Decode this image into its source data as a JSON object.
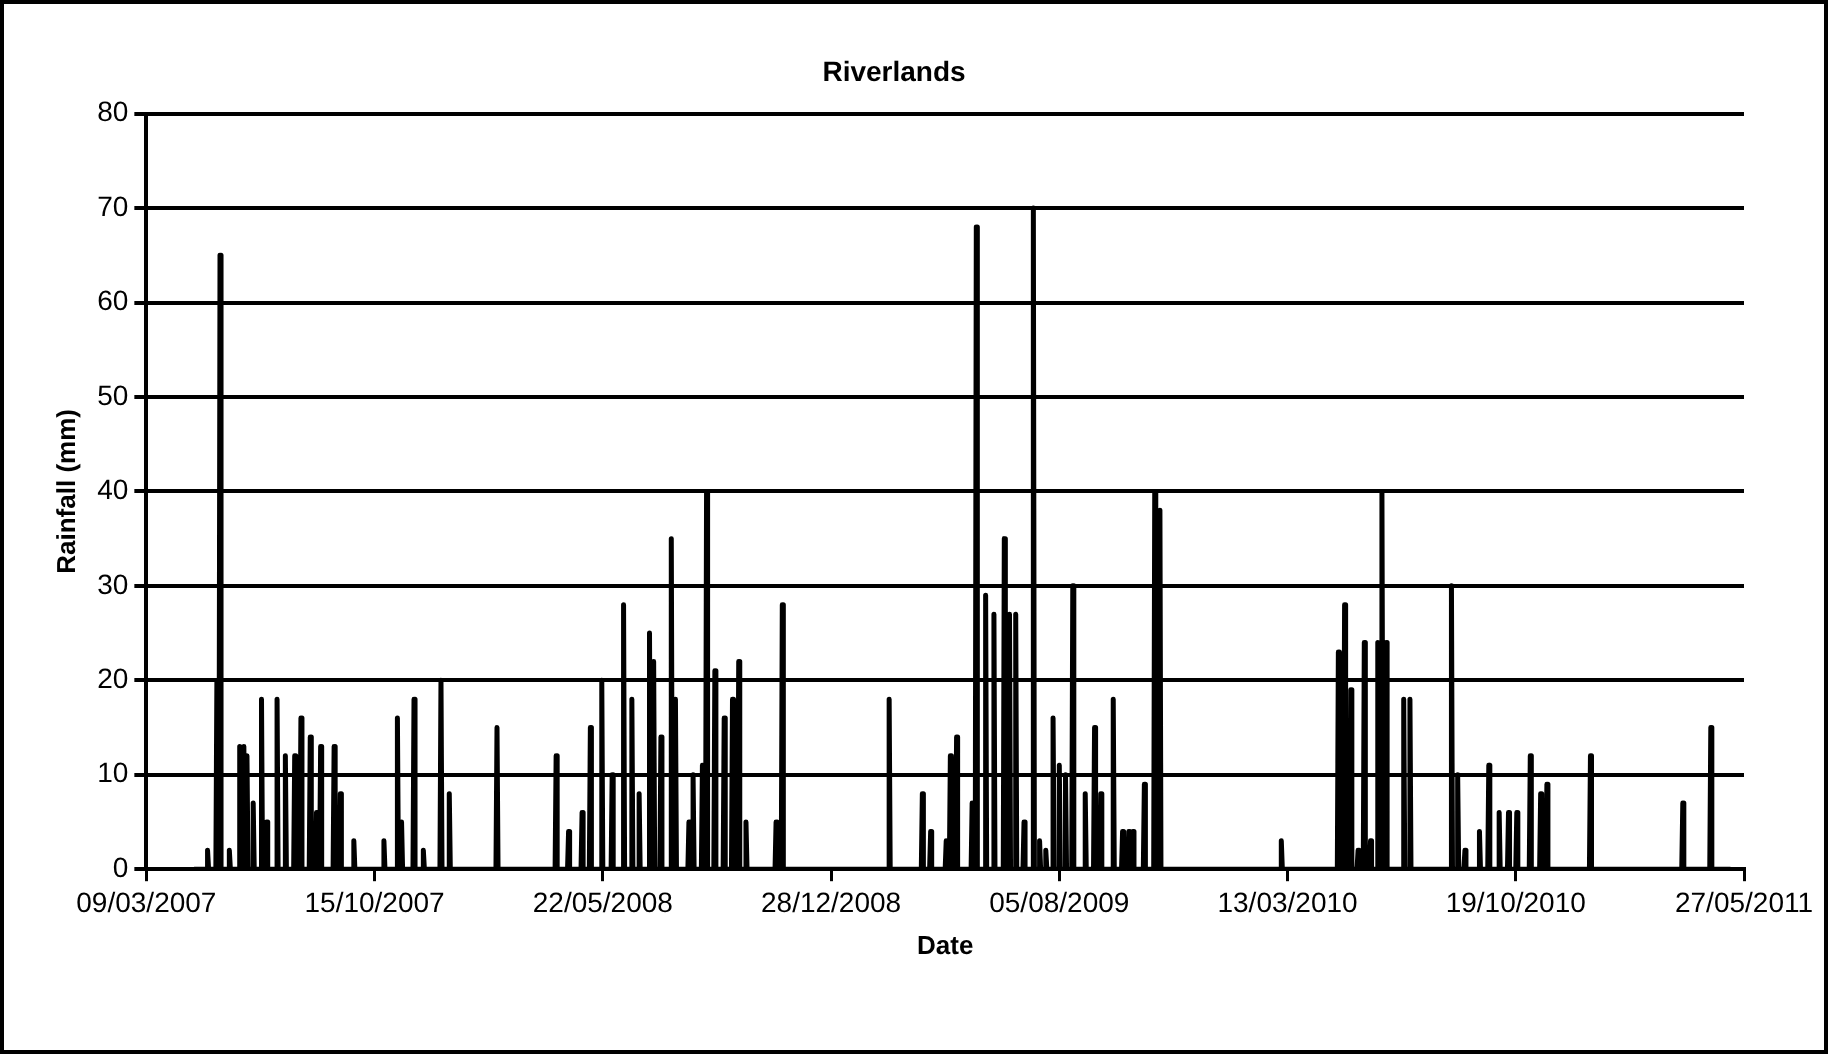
{
  "chart_data": {
    "type": "line",
    "title": "Riverlands",
    "xlabel": "Date",
    "ylabel": "Rainfall (mm)",
    "xlim": [
      "2007-03-09",
      "2011-05-27"
    ],
    "xticks": [
      {
        "value": "2007-03-09",
        "label": "09/03/2007"
      },
      {
        "value": "2007-10-15",
        "label": "15/10/2007"
      },
      {
        "value": "2008-05-22",
        "label": "22/05/2008"
      },
      {
        "value": "2008-12-28",
        "label": "28/12/2008"
      },
      {
        "value": "2009-08-05",
        "label": "05/08/2009"
      },
      {
        "value": "2010-03-13",
        "label": "13/03/2010"
      },
      {
        "value": "2010-10-19",
        "label": "19/10/2010"
      },
      {
        "value": "2011-05-27",
        "label": "27/05/2011"
      }
    ],
    "ylim": [
      0,
      80
    ],
    "yticks": [
      0,
      10,
      20,
      30,
      40,
      50,
      60,
      70,
      80
    ],
    "grid": "y",
    "legend": false,
    "marker": "none",
    "line_style": "solid",
    "series": [
      {
        "color": "#000000",
        "x": [
          "2007-04-24",
          "2007-05-06",
          "2007-05-07",
          "2007-05-08",
          "2007-05-15",
          "2007-05-16",
          "2007-05-17",
          "2007-05-18",
          "2007-05-19",
          "2007-05-20",
          "2007-05-27",
          "2007-05-28",
          "2007-05-29",
          "2007-06-06",
          "2007-06-07",
          "2007-06-08",
          "2007-06-10",
          "2007-06-11",
          "2007-06-12",
          "2007-06-13",
          "2007-06-14",
          "2007-06-15",
          "2007-06-19",
          "2007-06-20",
          "2007-06-21",
          "2007-06-27",
          "2007-06-28",
          "2007-06-29",
          "2007-07-02",
          "2007-07-03",
          "2007-07-04",
          "2007-07-12",
          "2007-07-13",
          "2007-07-14",
          "2007-07-20",
          "2007-07-21",
          "2007-07-22",
          "2007-07-29",
          "2007-07-30",
          "2007-07-31",
          "2007-08-04",
          "2007-08-05",
          "2007-08-06",
          "2007-08-13",
          "2007-08-14",
          "2007-08-15",
          "2007-08-19",
          "2007-08-20",
          "2007-08-21",
          "2007-08-23",
          "2007-08-24",
          "2007-08-25",
          "2007-09-05",
          "2007-09-06",
          "2007-09-07",
          "2007-09-11",
          "2007-09-12",
          "2007-09-13",
          "2007-09-24",
          "2007-09-25",
          "2007-09-26",
          "2007-10-23",
          "2007-10-24",
          "2007-10-25",
          "2007-11-05",
          "2007-11-06",
          "2007-11-07",
          "2007-11-09",
          "2007-11-10",
          "2007-11-11",
          "2007-11-21",
          "2007-11-22",
          "2007-11-23",
          "2007-11-30",
          "2007-12-01",
          "2007-12-02",
          "2007-12-17",
          "2007-12-18",
          "2007-12-19",
          "2007-12-25",
          "2007-12-26",
          "2007-12-27",
          "2008-02-09",
          "2008-02-10",
          "2008-02-11",
          "2008-04-06",
          "2008-04-07",
          "2008-04-08",
          "2008-04-18",
          "2008-04-19",
          "2008-04-20",
          "2008-05-01",
          "2008-05-02",
          "2008-05-03",
          "2008-05-09",
          "2008-05-10",
          "2008-05-11",
          "2008-05-20",
          "2008-05-21",
          "2008-05-22",
          "2008-05-30",
          "2008-05-31",
          "2008-06-01",
          "2008-06-10",
          "2008-06-11",
          "2008-06-12",
          "2008-06-18",
          "2008-06-19",
          "2008-06-20",
          "2008-06-25",
          "2008-06-26",
          "2008-06-27",
          "2008-07-05",
          "2008-07-06",
          "2008-07-07",
          "2008-07-09",
          "2008-07-10",
          "2008-07-11",
          "2008-07-16",
          "2008-07-17",
          "2008-07-18",
          "2008-07-26",
          "2008-07-27",
          "2008-07-28",
          "2008-07-30",
          "2008-07-31",
          "2008-08-01",
          "2008-08-12",
          "2008-08-13",
          "2008-08-14",
          "2008-08-16",
          "2008-08-17",
          "2008-08-18",
          "2008-08-25",
          "2008-08-26",
          "2008-08-27",
          "2008-08-29",
          "2008-08-30",
          "2008-08-31",
          "2008-09-06",
          "2008-09-07",
          "2008-09-08",
          "2008-09-15",
          "2008-09-16",
          "2008-09-17",
          "2008-09-23",
          "2008-09-24",
          "2008-09-25",
          "2008-09-29",
          "2008-09-30",
          "2008-10-01",
          "2008-10-06",
          "2008-10-07",
          "2008-10-08",
          "2008-11-04",
          "2008-11-05",
          "2008-11-06",
          "2008-11-10",
          "2008-11-11",
          "2008-11-12",
          "2009-02-21",
          "2009-02-22",
          "2009-02-23",
          "2009-03-25",
          "2009-03-26",
          "2009-03-27",
          "2009-04-02",
          "2009-04-03",
          "2009-04-04",
          "2009-04-17",
          "2009-04-18",
          "2009-04-19",
          "2009-04-21",
          "2009-04-22",
          "2009-04-23",
          "2009-04-27",
          "2009-04-28",
          "2009-04-29",
          "2009-05-12",
          "2009-05-13",
          "2009-05-14",
          "2009-05-16",
          "2009-05-17",
          "2009-05-18",
          "2009-05-25",
          "2009-05-26",
          "2009-05-27",
          "2009-06-02",
          "2009-06-03",
          "2009-06-04",
          "2009-06-12",
          "2009-06-13",
          "2009-06-14",
          "2009-06-17",
          "2009-06-18",
          "2009-06-19",
          "2009-06-23",
          "2009-06-24",
          "2009-06-25",
          "2009-07-01",
          "2009-07-02",
          "2009-07-03",
          "2009-07-10",
          "2009-07-11",
          "2009-07-12",
          "2009-07-16",
          "2009-07-17",
          "2009-07-18",
          "2009-07-22",
          "2009-07-23",
          "2009-07-24",
          "2009-07-29",
          "2009-07-30",
          "2009-07-31",
          "2009-08-04",
          "2009-08-05",
          "2009-08-06",
          "2009-08-10",
          "2009-08-11",
          "2009-08-12",
          "2009-08-17",
          "2009-08-18",
          "2009-08-19",
          "2009-08-29",
          "2009-08-30",
          "2009-08-31",
          "2009-09-07",
          "2009-09-08",
          "2009-09-09",
          "2009-09-13",
          "2009-09-14",
          "2009-09-15",
          "2009-09-25",
          "2009-09-26",
          "2009-09-27",
          "2009-10-04",
          "2009-10-05",
          "2009-10-06",
          "2009-10-10",
          "2009-10-11",
          "2009-10-12",
          "2009-10-14",
          "2009-10-15",
          "2009-10-16",
          "2009-10-25",
          "2009-10-26",
          "2009-10-27",
          "2009-11-04",
          "2009-11-05",
          "2009-11-06",
          "2009-11-09",
          "2009-11-10",
          "2009-11-11",
          "2010-03-06",
          "2010-03-07",
          "2010-03-08",
          "2010-04-30",
          "2010-05-01",
          "2010-05-02",
          "2010-05-06",
          "2010-05-07",
          "2010-05-08",
          "2010-05-12",
          "2010-05-13",
          "2010-05-14",
          "2010-05-19",
          "2010-05-20",
          "2010-05-21",
          "2010-05-25",
          "2010-05-26",
          "2010-05-27",
          "2010-05-31",
          "2010-06-01",
          "2010-06-02",
          "2010-06-07",
          "2010-06-08",
          "2010-06-09",
          "2010-06-11",
          "2010-06-12",
          "2010-06-13",
          "2010-06-15",
          "2010-06-16",
          "2010-06-17",
          "2010-07-02",
          "2010-07-03",
          "2010-07-04",
          "2010-07-08",
          "2010-07-09",
          "2010-07-10",
          "2010-08-17",
          "2010-08-18",
          "2010-08-19",
          "2010-08-23",
          "2010-08-24",
          "2010-08-25",
          "2010-08-30",
          "2010-08-31",
          "2010-09-01",
          "2010-09-13",
          "2010-09-14",
          "2010-09-15",
          "2010-09-22",
          "2010-09-23",
          "2010-09-24",
          "2010-10-02",
          "2010-10-03",
          "2010-10-04",
          "2010-10-11",
          "2010-10-12",
          "2010-10-13",
          "2010-10-19",
          "2010-10-20",
          "2010-10-21",
          "2010-11-01",
          "2010-11-02",
          "2010-11-03",
          "2010-11-11",
          "2010-11-12",
          "2010-11-13",
          "2010-11-17",
          "2010-11-18",
          "2010-11-19",
          "2010-12-29",
          "2010-12-30",
          "2010-12-31",
          "2011-03-28",
          "2011-03-29",
          "2011-03-30",
          "2011-04-24",
          "2011-04-25",
          "2011-04-26",
          "2011-05-14"
        ],
        "values": [
          0,
          0,
          2,
          0,
          0,
          20,
          0,
          0,
          65,
          0,
          0,
          2,
          0,
          0,
          13,
          0,
          0,
          13,
          0,
          0,
          12,
          0,
          0,
          7,
          0,
          0,
          18,
          0,
          0,
          5,
          0,
          0,
          18,
          0,
          0,
          12,
          0,
          0,
          12,
          0,
          0,
          16,
          0,
          0,
          14,
          0,
          0,
          6,
          0,
          0,
          13,
          0,
          0,
          13,
          0,
          0,
          8,
          0,
          0,
          3,
          0,
          0,
          3,
          0,
          0,
          16,
          0,
          0,
          5,
          0,
          0,
          18,
          0,
          0,
          2,
          0,
          0,
          20,
          0,
          0,
          8,
          0,
          0,
          15,
          0,
          0,
          12,
          0,
          0,
          4,
          0,
          0,
          6,
          0,
          0,
          15,
          0,
          0,
          20,
          0,
          0,
          10,
          0,
          0,
          28,
          0,
          0,
          18,
          0,
          0,
          8,
          0,
          0,
          25,
          0,
          0,
          22,
          0,
          0,
          14,
          0,
          0,
          35,
          0,
          0,
          18,
          0,
          0,
          5,
          0,
          0,
          10,
          0,
          0,
          11,
          0,
          0,
          40,
          0,
          0,
          21,
          0,
          0,
          16,
          0,
          0,
          18,
          0,
          0,
          22,
          0,
          0,
          5,
          0,
          0,
          5,
          0,
          0,
          28,
          0,
          0,
          18,
          0,
          0,
          8,
          0,
          0,
          4,
          0,
          0,
          3,
          0,
          0,
          12,
          0,
          0,
          14,
          0,
          0,
          7,
          0,
          0,
          68,
          0,
          0,
          29,
          0,
          0,
          27,
          0,
          0,
          35,
          0,
          0,
          27,
          0,
          0,
          27,
          0,
          0,
          5,
          0,
          0,
          70,
          0,
          0,
          3,
          0,
          0,
          2,
          0,
          0,
          16,
          0,
          0,
          11,
          0,
          0,
          10,
          0,
          0,
          30,
          0,
          0,
          8,
          0,
          0,
          15,
          0,
          0,
          8,
          0,
          0,
          18,
          0,
          0,
          4,
          0,
          0,
          4,
          0,
          0,
          4,
          0,
          0,
          9,
          0,
          0,
          40,
          0,
          0,
          38,
          0,
          0,
          3,
          0,
          0,
          23,
          0,
          0,
          28,
          0,
          0,
          19,
          0,
          0,
          2,
          0,
          0,
          24,
          0,
          0,
          3,
          0,
          0,
          24,
          0,
          0,
          40,
          0,
          0,
          24,
          0,
          0,
          18,
          0,
          0,
          18,
          0,
          0,
          30,
          0,
          0,
          10,
          0,
          0,
          2,
          0,
          0,
          4,
          0,
          0,
          11,
          0,
          0,
          6,
          0,
          0,
          6,
          0,
          0,
          6,
          0,
          0,
          12,
          0,
          0,
          8,
          0,
          0,
          9,
          0,
          0,
          12,
          0,
          0,
          7,
          0,
          0,
          15,
          0,
          0
        ]
      }
    ]
  }
}
